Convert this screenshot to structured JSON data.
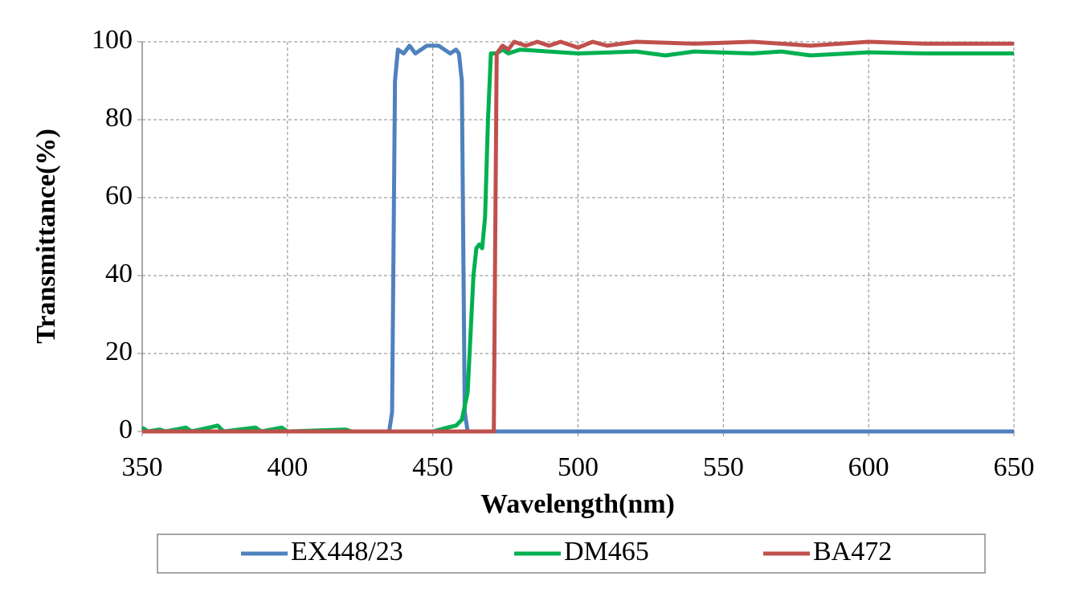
{
  "chart_data": {
    "type": "line",
    "xlabel": "Wavelength(nm)",
    "ylabel": "Transmittance(%)",
    "xlim": [
      350,
      650
    ],
    "xticks": [
      350,
      400,
      450,
      500,
      550,
      600,
      650
    ],
    "ylim": [
      0,
      100
    ],
    "yticks": [
      0,
      20,
      40,
      60,
      80,
      100
    ],
    "grid": true,
    "legend": "bottom",
    "series": [
      {
        "name": "EX448/23",
        "color": "#4f81bd",
        "x": [
          350,
          435,
          436,
          437,
          438,
          440,
          442,
          444,
          446,
          448,
          450,
          452,
          454,
          456,
          458,
          459,
          460,
          461,
          462,
          650
        ],
        "values": [
          0,
          0,
          5,
          90,
          98,
          97,
          99,
          97,
          98,
          99,
          99,
          99,
          98,
          97,
          98,
          97,
          90,
          5,
          0,
          0
        ]
      },
      {
        "name": "DM465",
        "color": "#00b050",
        "x": [
          350,
          352,
          356,
          358,
          365,
          367,
          376,
          378,
          389,
          391,
          398,
          400,
          420,
          422,
          450,
          455,
          458,
          460,
          462,
          463,
          464,
          465,
          466,
          467,
          468,
          469,
          470,
          472,
          474,
          476,
          480,
          490,
          500,
          520,
          530,
          540,
          560,
          570,
          580,
          600,
          620,
          650
        ],
        "values": [
          1,
          0,
          0.5,
          0,
          1,
          0,
          1.5,
          0,
          1,
          0,
          1,
          0,
          0.5,
          0,
          0,
          1,
          1.5,
          3,
          10,
          25,
          40,
          47,
          48,
          47,
          55,
          80,
          97,
          97,
          98,
          97,
          98,
          97.5,
          97,
          97.5,
          96.5,
          97.5,
          97,
          97.5,
          96.5,
          97.3,
          97,
          97
        ]
      },
      {
        "name": "BA472",
        "color": "#c0504d",
        "x": [
          350,
          471,
          471.5,
          472,
          474,
          476,
          478,
          482,
          486,
          490,
          494,
          500,
          505,
          510,
          520,
          540,
          560,
          580,
          600,
          620,
          650
        ],
        "values": [
          0,
          0,
          50,
          97,
          99,
          98,
          100,
          99,
          100,
          99,
          100,
          98.5,
          100,
          99,
          100,
          99.5,
          100,
          99,
          100,
          99.5,
          99.5
        ]
      }
    ]
  }
}
